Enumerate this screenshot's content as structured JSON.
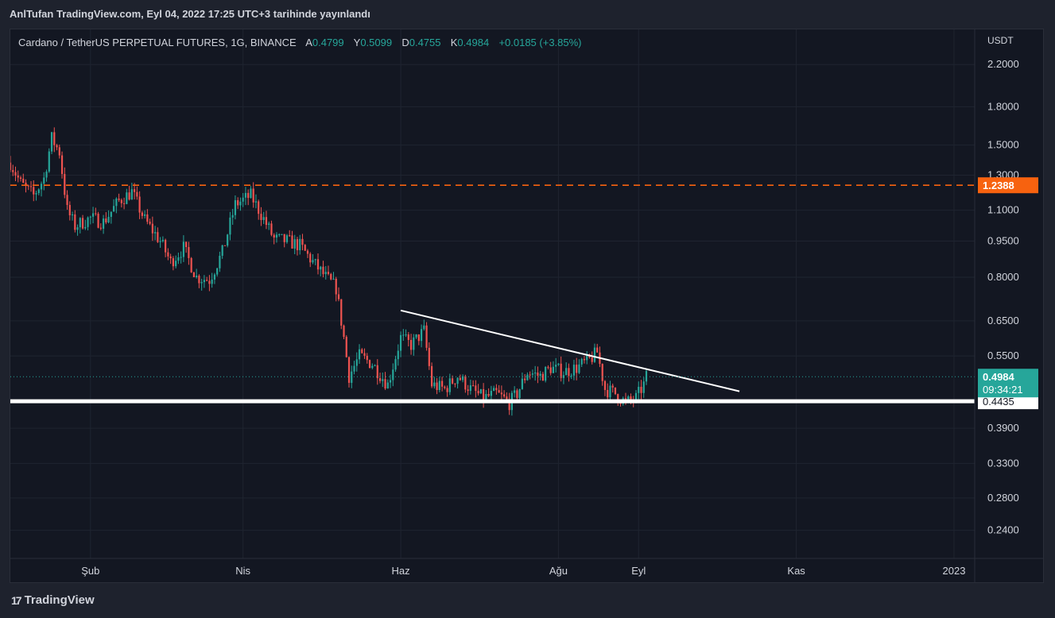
{
  "header": {
    "published_line": "AnlTufan TradingView.com, Eyl 04, 2022 17:25 UTC+3 tarihinde yayınlandı"
  },
  "legend": {
    "symbol": "Cardano / TetherUS PERPETUAL FUTURES, 1G, BINANCE",
    "open_label": "A",
    "open": "0.4799",
    "high_label": "Y",
    "high": "0.5099",
    "low_label": "D",
    "low": "0.4755",
    "close_label": "K",
    "close": "0.4984",
    "change": "+0.0185 (+3.85%)"
  },
  "footer": {
    "logo_mark": "17",
    "logo_text": "TradingView"
  },
  "colors": {
    "up": "#26a69a",
    "down": "#ef5350",
    "resistance": "#f7620f",
    "support": "#ffffff",
    "trendline": "#ffffff",
    "grid": "#1f2430",
    "background": "#131722"
  },
  "chart_data": {
    "type": "candlestick",
    "title": "Cardano / TetherUS PERPETUAL FUTURES, 1G, BINANCE",
    "y_axis": {
      "unit": "USDT",
      "scale": "log",
      "range": [
        0.21,
        2.6
      ],
      "ticks": [
        "2.2000",
        "1.8000",
        "1.5000",
        "1.3000",
        "1.1000",
        "0.9500",
        "0.8000",
        "0.6500",
        "0.5500",
        "0.3900",
        "0.3300",
        "0.2800",
        "0.2400"
      ]
    },
    "x_axis": {
      "range": [
        "2022-01-01",
        "2023-01-09"
      ],
      "ticks": [
        {
          "label": "Şub",
          "date": "2022-02-01"
        },
        {
          "label": "Nis",
          "date": "2022-04-01"
        },
        {
          "label": "Haz",
          "date": "2022-06-01"
        },
        {
          "label": "Ağu",
          "date": "2022-08-01"
        },
        {
          "label": "Eyl",
          "date": "2022-09-01"
        },
        {
          "label": "Kas",
          "date": "2022-11-01"
        },
        {
          "label": "2023",
          "date": "2023-01-01"
        }
      ]
    },
    "price_path": [
      {
        "date": "2022-01-01",
        "price": 1.38
      },
      {
        "date": "2022-01-05",
        "price": 1.25
      },
      {
        "date": "2022-01-10",
        "price": 1.18
      },
      {
        "date": "2022-01-14",
        "price": 1.28
      },
      {
        "date": "2022-01-17",
        "price": 1.55
      },
      {
        "date": "2022-01-20",
        "price": 1.45
      },
      {
        "date": "2022-01-23",
        "price": 1.1
      },
      {
        "date": "2022-01-26",
        "price": 1.02
      },
      {
        "date": "2022-02-01",
        "price": 1.06
      },
      {
        "date": "2022-02-06",
        "price": 1.04
      },
      {
        "date": "2022-02-12",
        "price": 1.15
      },
      {
        "date": "2022-02-17",
        "price": 1.2
      },
      {
        "date": "2022-02-22",
        "price": 1.05
      },
      {
        "date": "2022-02-28",
        "price": 0.95
      },
      {
        "date": "2022-03-04",
        "price": 0.86
      },
      {
        "date": "2022-03-09",
        "price": 0.92
      },
      {
        "date": "2022-03-14",
        "price": 0.8
      },
      {
        "date": "2022-03-19",
        "price": 0.79
      },
      {
        "date": "2022-03-24",
        "price": 0.9
      },
      {
        "date": "2022-03-29",
        "price": 1.13
      },
      {
        "date": "2022-04-04",
        "price": 1.18
      },
      {
        "date": "2022-04-08",
        "price": 1.08
      },
      {
        "date": "2022-04-13",
        "price": 0.96
      },
      {
        "date": "2022-04-18",
        "price": 0.95
      },
      {
        "date": "2022-04-23",
        "price": 0.93
      },
      {
        "date": "2022-04-28",
        "price": 0.86
      },
      {
        "date": "2022-05-03",
        "price": 0.8
      },
      {
        "date": "2022-05-07",
        "price": 0.76
      },
      {
        "date": "2022-05-10",
        "price": 0.6
      },
      {
        "date": "2022-05-12",
        "price": 0.5
      },
      {
        "date": "2022-05-16",
        "price": 0.55
      },
      {
        "date": "2022-05-21",
        "price": 0.53
      },
      {
        "date": "2022-05-27",
        "price": 0.48
      },
      {
        "date": "2022-06-01",
        "price": 0.6
      },
      {
        "date": "2022-06-05",
        "price": 0.58
      },
      {
        "date": "2022-06-10",
        "price": 0.62
      },
      {
        "date": "2022-06-13",
        "price": 0.48
      },
      {
        "date": "2022-06-18",
        "price": 0.47
      },
      {
        "date": "2022-06-23",
        "price": 0.5
      },
      {
        "date": "2022-06-28",
        "price": 0.47
      },
      {
        "date": "2022-07-03",
        "price": 0.45
      },
      {
        "date": "2022-07-08",
        "price": 0.46
      },
      {
        "date": "2022-07-13",
        "price": 0.44
      },
      {
        "date": "2022-07-16",
        "price": 0.46
      },
      {
        "date": "2022-07-20",
        "price": 0.51
      },
      {
        "date": "2022-07-25",
        "price": 0.5
      },
      {
        "date": "2022-07-29",
        "price": 0.52
      },
      {
        "date": "2022-08-03",
        "price": 0.51
      },
      {
        "date": "2022-08-08",
        "price": 0.52
      },
      {
        "date": "2022-08-13",
        "price": 0.54
      },
      {
        "date": "2022-08-16",
        "price": 0.56
      },
      {
        "date": "2022-08-19",
        "price": 0.47
      },
      {
        "date": "2022-08-23",
        "price": 0.46
      },
      {
        "date": "2022-08-27",
        "price": 0.44
      },
      {
        "date": "2022-08-31",
        "price": 0.45
      },
      {
        "date": "2022-09-03",
        "price": 0.48
      },
      {
        "date": "2022-09-04",
        "price": 0.4984
      }
    ],
    "levels": [
      {
        "kind": "horizontal-dashed",
        "price": 1.2388,
        "label": "1.2388"
      },
      {
        "kind": "horizontal-solid",
        "price": 0.4435,
        "label": "0.4435"
      }
    ],
    "trendline": {
      "start": {
        "date": "2022-06-01",
        "price": 0.683
      },
      "end": {
        "date": "2022-10-10",
        "price": 0.465
      }
    },
    "last_price": {
      "value": "0.4984",
      "countdown": "09:34:21"
    }
  }
}
